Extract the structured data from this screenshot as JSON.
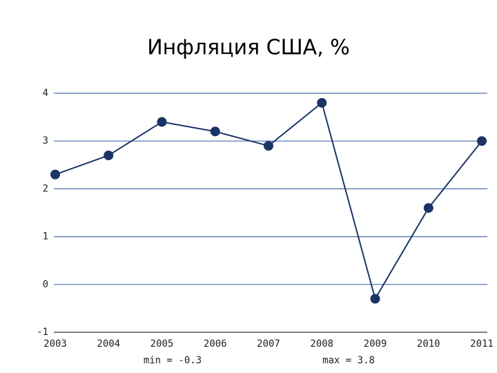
{
  "chart_data": {
    "type": "line",
    "title": "Инфляция США, %",
    "categories": [
      "2003",
      "2004",
      "2005",
      "2006",
      "2007",
      "2008",
      "2009",
      "2010",
      "2011"
    ],
    "series": [
      {
        "name": "Инфляция",
        "color": "#1b3466",
        "values": [
          2.3,
          2.7,
          3.4,
          3.2,
          2.9,
          3.8,
          -0.3,
          1.6,
          3.0
        ]
      }
    ],
    "ylim": [
      -1,
      4
    ],
    "yticks": [
      -1,
      0,
      1,
      2,
      3,
      4
    ],
    "grid": true,
    "grid_color": "#4a6fa8",
    "annotations": [
      "min = -0.3",
      "max = 3.8"
    ]
  }
}
